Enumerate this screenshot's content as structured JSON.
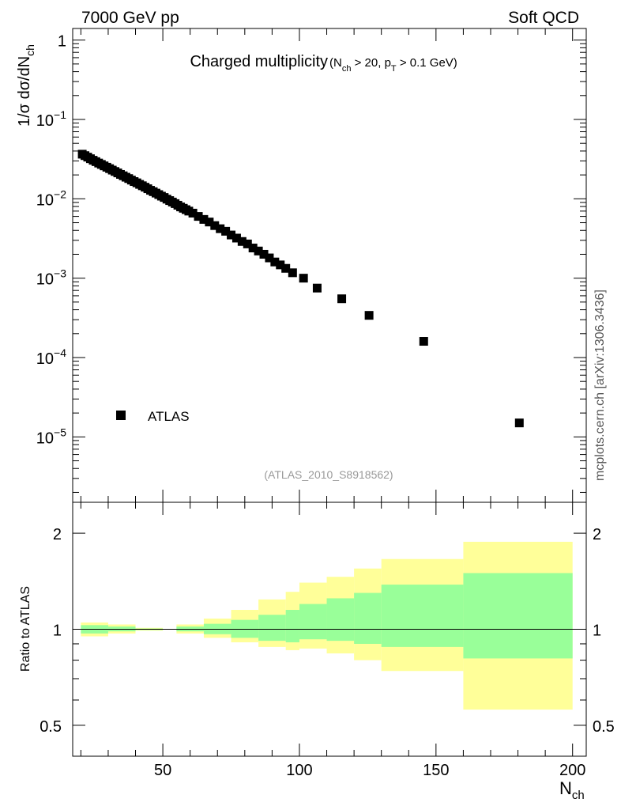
{
  "header": {
    "left": "7000 GeV pp",
    "right": "Soft QCD"
  },
  "plot_title": {
    "main": "Charged multiplicity",
    "cuts": "(N",
    "cuts_sub1": "ch",
    "cuts_mid": " > 20, p",
    "cuts_sub2": "T",
    "cuts_end": " > 0.1 GeV)"
  },
  "watermark": "mcplots.cern.ch [arXiv:1306.3436]",
  "analysis_id": "(ATLAS_2010_S8918562)",
  "legend": {
    "label": "ATLAS"
  },
  "colors": {
    "band_outer": "#ffff99",
    "band_inner": "#99ff99",
    "marker": "#000000",
    "analysis_text": "#999999"
  },
  "chart_data": [
    {
      "type": "scatter",
      "title": "Charged multiplicity",
      "ylabel": "1/σ dσ/dN_ch",
      "ylabel_parts": {
        "main": "1/σ dσ/dN",
        "sub": "ch"
      },
      "xlabel": "N_ch",
      "yscale": "log",
      "xlim": [
        17,
        205
      ],
      "ylim": [
        1.5e-06,
        1.4
      ],
      "yticks": [
        {
          "value": 1,
          "base": "1",
          "exp": ""
        },
        {
          "value": 0.1,
          "base": "10",
          "exp": "−1"
        },
        {
          "value": 0.01,
          "base": "10",
          "exp": "−2"
        },
        {
          "value": 0.001,
          "base": "10",
          "exp": "−3"
        },
        {
          "value": 0.0001,
          "base": "10",
          "exp": "−4"
        },
        {
          "value": 1e-05,
          "base": "10",
          "exp": "−5"
        }
      ],
      "series": [
        {
          "name": "ATLAS",
          "x": [
            20.5,
            21.5,
            22.5,
            23.5,
            24.5,
            25.5,
            26.5,
            27.5,
            28.5,
            29.5,
            30.5,
            31.5,
            32.5,
            33.5,
            34.5,
            35.5,
            36.5,
            37.5,
            38.5,
            39.5,
            40.5,
            41.5,
            42.5,
            43.5,
            44.5,
            45.5,
            46.5,
            47.5,
            48.5,
            49.5,
            50.5,
            51.5,
            52.5,
            53.5,
            54.5,
            55.5,
            56.5,
            57.5,
            58.5,
            59.5,
            61,
            63,
            65,
            67,
            69,
            71,
            73,
            75,
            77,
            79,
            81,
            83,
            85,
            87,
            89,
            91,
            93,
            95,
            97.5,
            101.5,
            106.5,
            115.5,
            125.5,
            145.5,
            180.5
          ],
          "y": [
            0.0365,
            0.035,
            0.0335,
            0.032,
            0.0306,
            0.0294,
            0.0282,
            0.0271,
            0.026,
            0.025,
            0.024,
            0.023,
            0.0221,
            0.0212,
            0.0203,
            0.0195,
            0.0187,
            0.018,
            0.0172,
            0.0165,
            0.0159,
            0.0152,
            0.0146,
            0.014,
            0.0134,
            0.0128,
            0.0123,
            0.0118,
            0.0113,
            0.0108,
            0.0104,
            0.0099,
            0.0095,
            0.0091,
            0.0087,
            0.0083,
            0.0079,
            0.0076,
            0.0073,
            0.007,
            0.0066,
            0.006,
            0.0055,
            0.0051,
            0.0046,
            0.0042,
            0.0039,
            0.0035,
            0.0032,
            0.0029,
            0.0027,
            0.0024,
            0.0022,
            0.002,
            0.0018,
            0.0016,
            0.00147,
            0.00133,
            0.00117,
            0.001,
            0.00075,
            0.00055,
            0.00034,
            0.00016,
            1.5e-05
          ]
        }
      ]
    },
    {
      "type": "area",
      "ylabel": "Ratio to ATLAS",
      "xlabel": "N_ch",
      "xlabel_parts": {
        "main": "N",
        "sub": "ch"
      },
      "yscale": "log",
      "xlim": [
        17,
        205
      ],
      "ylim": [
        0.4,
        2.5
      ],
      "xticks": [
        50,
        100,
        150,
        200
      ],
      "yticks": [
        0.5,
        1,
        2
      ],
      "ytick_labels": [
        "0.5",
        "1",
        "2"
      ],
      "reference_line": 1,
      "bins": [
        {
          "xlow": 20,
          "xhigh": 30,
          "outer": [
            0.95,
            1.05
          ],
          "inner": [
            0.97,
            1.03
          ]
        },
        {
          "xlow": 30,
          "xhigh": 40,
          "outer": [
            0.97,
            1.035
          ],
          "inner": [
            0.985,
            1.02
          ]
        },
        {
          "xlow": 40,
          "xhigh": 50,
          "outer": [
            0.99,
            1.01
          ],
          "inner": [
            0.995,
            1.005
          ]
        },
        {
          "xlow": 50,
          "xhigh": 55,
          "outer": [
            0.998,
            1.002
          ],
          "inner": [
            0.999,
            1.001
          ]
        },
        {
          "xlow": 55,
          "xhigh": 65,
          "outer": [
            0.97,
            1.035
          ],
          "inner": [
            0.985,
            1.02
          ]
        },
        {
          "xlow": 65,
          "xhigh": 75,
          "outer": [
            0.94,
            1.08
          ],
          "inner": [
            0.965,
            1.04
          ]
        },
        {
          "xlow": 75,
          "xhigh": 85,
          "outer": [
            0.91,
            1.15
          ],
          "inner": [
            0.94,
            1.07
          ]
        },
        {
          "xlow": 85,
          "xhigh": 95,
          "outer": [
            0.88,
            1.24
          ],
          "inner": [
            0.92,
            1.11
          ]
        },
        {
          "xlow": 95,
          "xhigh": 100,
          "outer": [
            0.86,
            1.31
          ],
          "inner": [
            0.91,
            1.15
          ]
        },
        {
          "xlow": 100,
          "xhigh": 110,
          "outer": [
            0.87,
            1.4
          ],
          "inner": [
            0.93,
            1.2
          ]
        },
        {
          "xlow": 110,
          "xhigh": 120,
          "outer": [
            0.84,
            1.46
          ],
          "inner": [
            0.92,
            1.25
          ]
        },
        {
          "xlow": 120,
          "xhigh": 130,
          "outer": [
            0.8,
            1.55
          ],
          "inner": [
            0.9,
            1.3
          ]
        },
        {
          "xlow": 130,
          "xhigh": 160,
          "outer": [
            0.74,
            1.66
          ],
          "inner": [
            0.88,
            1.38
          ]
        },
        {
          "xlow": 160,
          "xhigh": 200,
          "outer": [
            0.56,
            1.88
          ],
          "inner": [
            0.81,
            1.5
          ]
        }
      ]
    }
  ]
}
